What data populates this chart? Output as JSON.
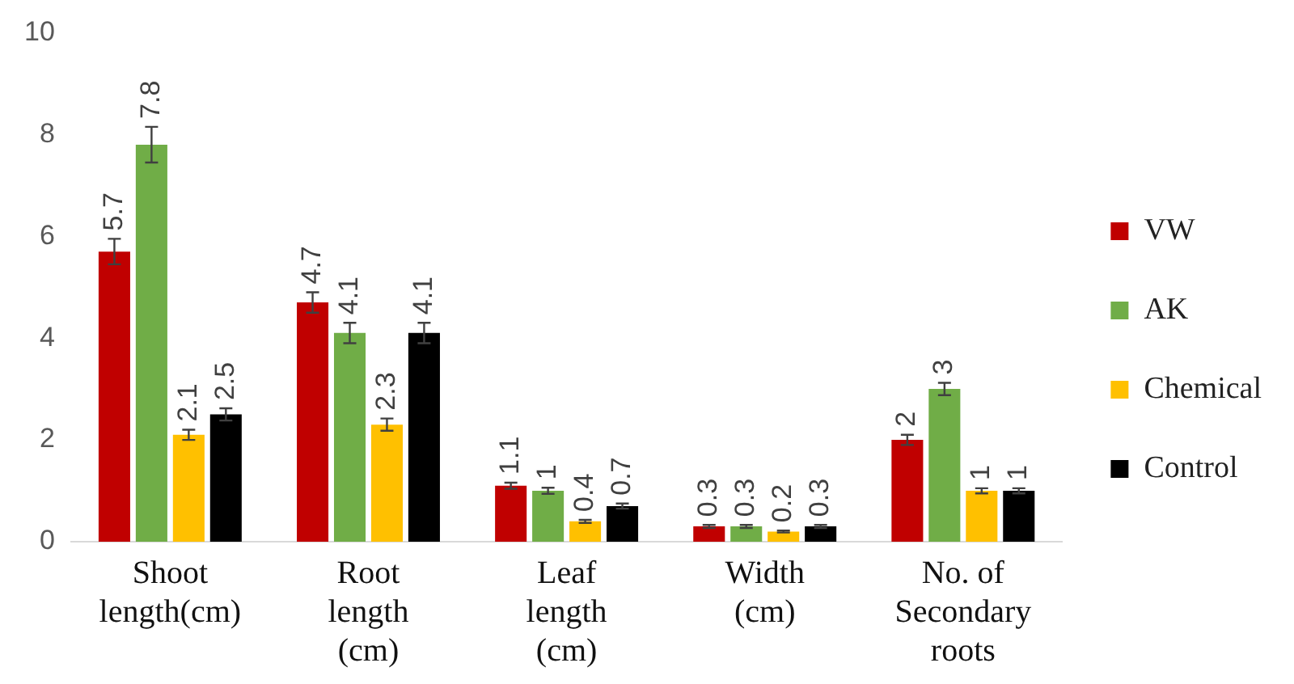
{
  "chart_data": {
    "type": "bar",
    "categories": [
      "Shoot length(cm)",
      "Root length (cm)",
      "Leaf length (cm)",
      "Width (cm)",
      "No. of Secondary roots"
    ],
    "series": [
      {
        "name": "VW",
        "color": "#c00000",
        "values": [
          5.7,
          4.7,
          1.1,
          0.3,
          2
        ],
        "errors": [
          0.25,
          0.2,
          0.06,
          0.03,
          0.1
        ]
      },
      {
        "name": "AK",
        "color": "#70ad47",
        "values": [
          7.8,
          4.1,
          1,
          0.3,
          3
        ],
        "errors": [
          0.35,
          0.2,
          0.06,
          0.03,
          0.12
        ]
      },
      {
        "name": "Chemical",
        "color": "#ffc000",
        "values": [
          2.1,
          2.3,
          0.4,
          0.2,
          1
        ],
        "errors": [
          0.1,
          0.12,
          0.03,
          0.02,
          0.05
        ]
      },
      {
        "name": "Control",
        "color": "#000000",
        "values": [
          2.5,
          4.1,
          0.7,
          0.3,
          1
        ],
        "errors": [
          0.12,
          0.2,
          0.05,
          0.03,
          0.05
        ]
      }
    ],
    "ylim": [
      0,
      10
    ],
    "yticks": [
      0,
      2,
      4,
      6,
      8,
      10
    ],
    "grid": false,
    "legend": "right",
    "data_labels": true
  }
}
